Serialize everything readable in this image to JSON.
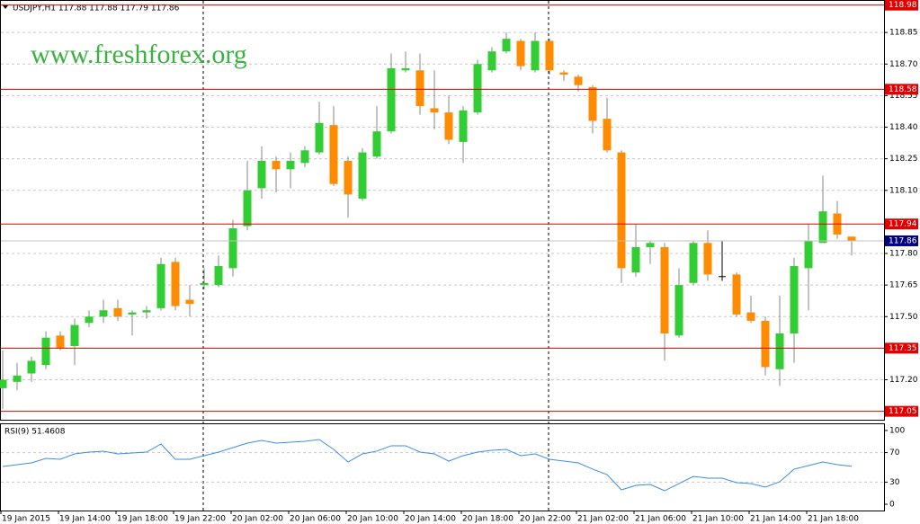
{
  "chart_data": {
    "type": "candlestick",
    "title": "USDJPY,H1  117.88 117.88 117.79 117.86",
    "watermark": "www.freshforex.org",
    "up_color": "#32cd32",
    "down_color": "#ff8c00",
    "doji_color": "#000000",
    "categories": [
      "19 Jan 2015",
      null,
      null,
      null,
      "19 Jan 14:00",
      null,
      null,
      null,
      "19 Jan 18:00",
      null,
      null,
      null,
      "19 Jan 22:00",
      null,
      null,
      null,
      "20 Jan 02:00",
      null,
      null,
      null,
      "20 Jan 06:00",
      null,
      null,
      null,
      "20 Jan 10:00",
      null,
      null,
      null,
      "20 Jan 14:00",
      null,
      null,
      null,
      "20 Jan 18:00",
      null,
      null,
      null,
      "20 Jan 22:00",
      null,
      null,
      null,
      "21 Jan 02:00",
      null,
      null,
      null,
      "21 Jan 06:00",
      null,
      null,
      null,
      "21 Jan 10:00",
      null,
      null,
      null,
      "21 Jan 14:00",
      null,
      null,
      null,
      "21 Jan 18:00",
      null,
      null,
      null
    ],
    "open": [
      117.16,
      117.19,
      117.23,
      117.27,
      117.41,
      117.36,
      117.47,
      117.5,
      117.54,
      117.51,
      117.52,
      117.54,
      117.76,
      117.58,
      117.65,
      117.65,
      117.73,
      117.93,
      118.11,
      118.24,
      118.2,
      118.23,
      118.28,
      118.41,
      118.24,
      118.06,
      118.26,
      118.38,
      118.67,
      118.67,
      118.49,
      118.47,
      118.33,
      118.47,
      118.67,
      118.76,
      118.81,
      118.67,
      118.81,
      118.66,
      118.64,
      118.59,
      118.44,
      118.28,
      117.71,
      117.83,
      117.83,
      117.41,
      117.66,
      117.85,
      117.69,
      117.7,
      117.52,
      117.48,
      117.25,
      117.42,
      117.73,
      117.85,
      117.99,
      117.88
    ],
    "high": [
      117.34,
      117.28,
      117.31,
      117.43,
      117.43,
      117.49,
      117.53,
      117.58,
      117.58,
      117.53,
      117.55,
      117.78,
      117.78,
      117.65,
      117.73,
      117.79,
      117.96,
      118.24,
      118.31,
      118.26,
      118.28,
      118.31,
      118.52,
      118.5,
      118.26,
      118.3,
      118.5,
      118.75,
      118.76,
      118.75,
      118.67,
      118.55,
      118.5,
      118.72,
      118.78,
      118.85,
      118.82,
      118.85,
      118.82,
      118.67,
      118.65,
      118.6,
      118.54,
      118.29,
      117.94,
      117.86,
      117.85,
      117.73,
      117.86,
      117.91,
      117.86,
      117.71,
      117.6,
      117.5,
      117.6,
      117.78,
      117.94,
      118.17,
      118.05,
      117.88
    ],
    "low": [
      117.06,
      117.15,
      117.19,
      117.25,
      117.34,
      117.27,
      117.45,
      117.47,
      117.48,
      117.41,
      117.49,
      117.53,
      117.53,
      117.5,
      117.63,
      117.64,
      117.69,
      117.91,
      118.06,
      118.09,
      118.11,
      118.21,
      118.27,
      118.12,
      117.97,
      118.05,
      118.25,
      118.37,
      118.66,
      118.46,
      118.39,
      118.32,
      118.23,
      118.46,
      118.66,
      118.75,
      118.67,
      118.66,
      118.65,
      118.62,
      118.57,
      118.37,
      118.28,
      117.66,
      117.69,
      117.75,
      117.29,
      117.4,
      117.65,
      117.67,
      117.67,
      117.5,
      117.47,
      117.22,
      117.17,
      117.28,
      117.53,
      117.85,
      117.87,
      117.79
    ],
    "close": [
      117.2,
      117.22,
      117.29,
      117.4,
      117.35,
      117.46,
      117.5,
      117.53,
      117.5,
      117.52,
      117.53,
      117.75,
      117.55,
      117.56,
      117.66,
      117.74,
      117.92,
      118.1,
      118.24,
      118.2,
      118.24,
      118.29,
      118.42,
      118.13,
      118.08,
      118.28,
      118.38,
      118.68,
      118.68,
      118.5,
      118.47,
      118.34,
      118.48,
      118.7,
      118.76,
      118.82,
      118.69,
      118.81,
      118.67,
      118.65,
      118.6,
      118.43,
      118.29,
      117.73,
      117.83,
      117.85,
      117.42,
      117.65,
      117.85,
      117.7,
      117.69,
      117.51,
      117.48,
      117.26,
      117.42,
      117.74,
      117.86,
      118.0,
      117.89,
      117.86
    ],
    "ylim": [
      117.01,
      119.0
    ],
    "yticks": [
      118.85,
      {
        "value": 118.7,
        "label": "118.70"
      },
      118.55,
      {
        "value": 118.4,
        "label": "118.40"
      },
      118.25,
      {
        "value": 118.1,
        "label": "118.10"
      },
      {
        "value": 117.8,
        "label": "117.80"
      },
      117.65,
      {
        "value": 117.5,
        "label": "117.50"
      },
      {
        "value": 117.2,
        "label": "117.20"
      }
    ],
    "levels": [
      118.98,
      118.58,
      117.94,
      117.35,
      117.05
    ],
    "level_color": "#e00000",
    "current_price": 117.86,
    "current_color": "#000080",
    "indicator": {
      "title": "RSI(9) 51.4608",
      "color": "#3a8ee6",
      "values": [
        51.2,
        53.7,
        56.1,
        62.2,
        61.0,
        68.3,
        70.7,
        72.0,
        68.3,
        69.5,
        70.7,
        81.7,
        61.0,
        61.0,
        65.9,
        70.7,
        76.8,
        82.9,
        86.6,
        82.9,
        84.1,
        85.4,
        87.8,
        74.4,
        57.3,
        68.3,
        72.0,
        79.3,
        79.3,
        70.7,
        68.3,
        58.5,
        65.9,
        70.7,
        73.2,
        74.4,
        65.9,
        68.3,
        61.0,
        58.5,
        56.1,
        47.6,
        40.2,
        19.5,
        25.6,
        26.8,
        18.3,
        28.0,
        37.8,
        35.4,
        35.4,
        29.3,
        28.0,
        23.2,
        30.5,
        47.6,
        52.4,
        57.3,
        53.7,
        51.46
      ],
      "ylim": [
        -8.5,
        108.5
      ],
      "yticks": [
        100,
        70,
        30,
        0
      ]
    }
  }
}
